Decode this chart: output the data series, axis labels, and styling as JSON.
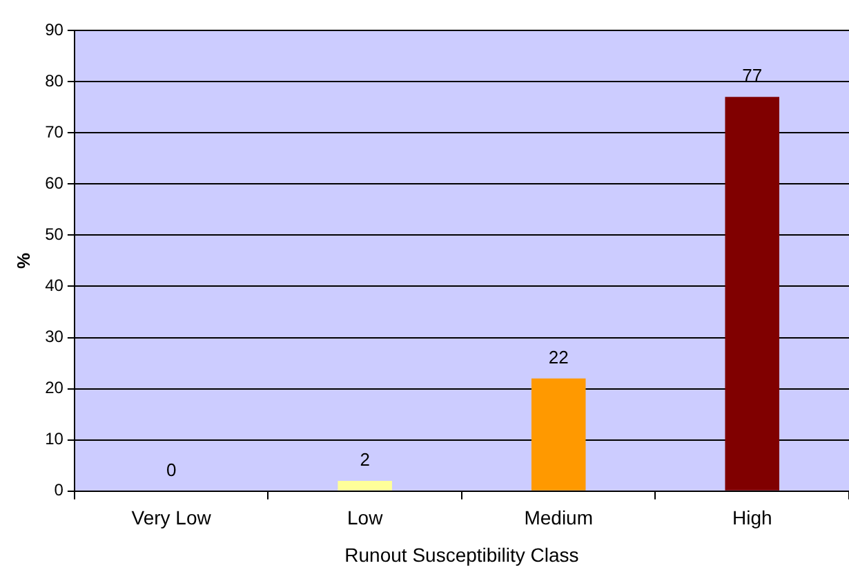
{
  "chart_data": {
    "type": "bar",
    "xlabel": "Runout Susceptibility Class",
    "ylabel": "%",
    "categories": [
      "Very Low",
      "Low",
      "Medium",
      "High"
    ],
    "values": [
      0,
      2,
      22,
      77
    ],
    "colors": [
      "#9999ff",
      "#ffff99",
      "#ff9900",
      "#800000"
    ],
    "ylim": [
      0,
      90
    ],
    "yticks": [
      0,
      10,
      20,
      30,
      40,
      50,
      60,
      70,
      80,
      90
    ],
    "grid": "y",
    "data_labels": true,
    "legend": false
  }
}
